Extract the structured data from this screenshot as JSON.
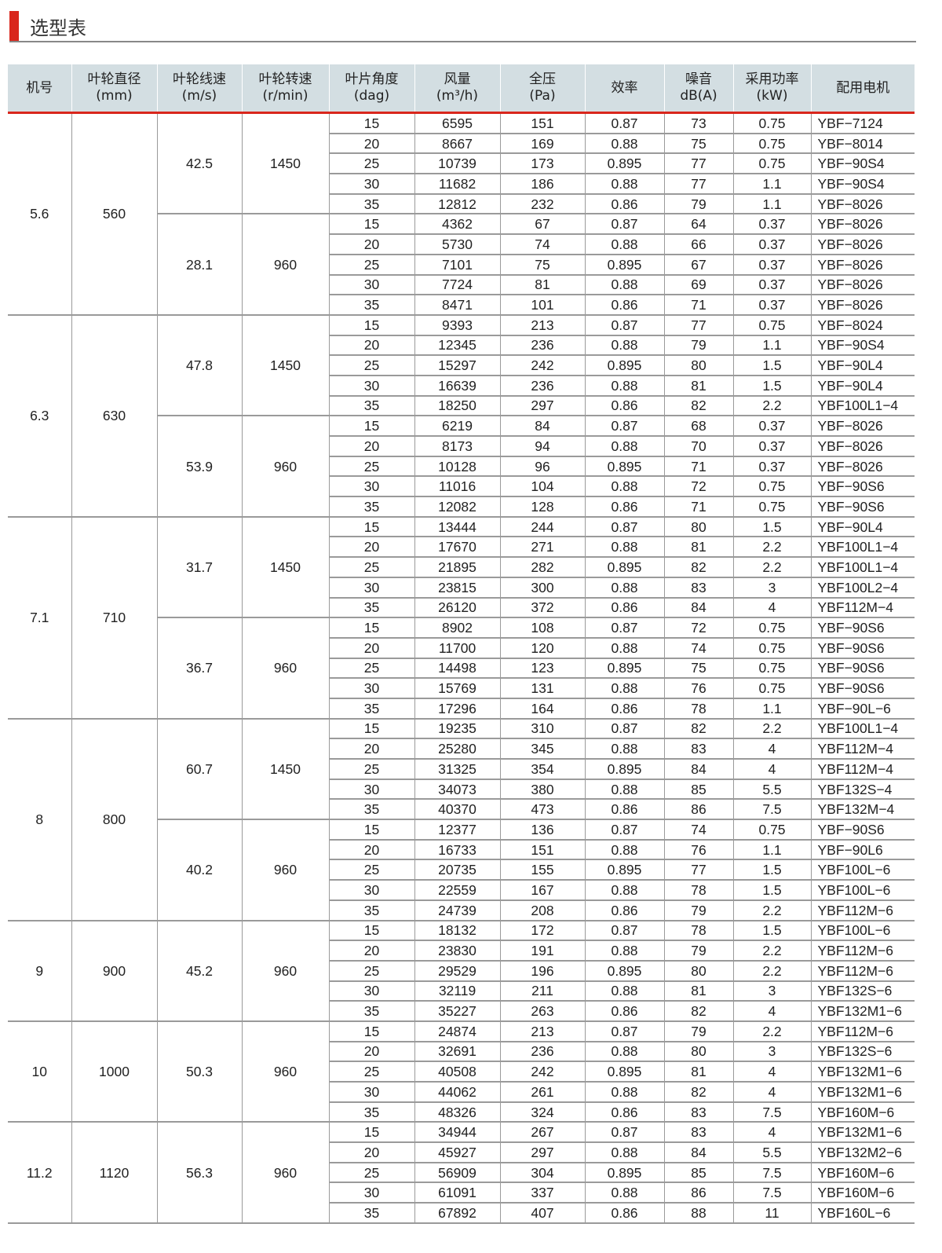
{
  "title": "选型表",
  "colors": {
    "accent": "#d9261c",
    "header_bg": "#d3dee2"
  },
  "headers": [
    {
      "name": "机号",
      "unit": ""
    },
    {
      "name": "叶轮直径",
      "unit": "(mm)"
    },
    {
      "name": "叶轮线速",
      "unit": "(m/s)"
    },
    {
      "name": "叶轮转速",
      "unit": "(r/min)"
    },
    {
      "name": "叶片角度",
      "unit": "(dag)"
    },
    {
      "name": "风量",
      "unit": "(m³/h)"
    },
    {
      "name": "全压",
      "unit": "(Pa)"
    },
    {
      "name": "效率",
      "unit": ""
    },
    {
      "name": "噪音",
      "unit": "dB(A)"
    },
    {
      "name": "采用功率",
      "unit": "(kW)"
    },
    {
      "name": "配用电机",
      "unit": ""
    }
  ],
  "groups": [
    {
      "no": "5.6",
      "diameter": "560",
      "subgroups": [
        {
          "speed": "42.5",
          "rpm": "1450",
          "rows": [
            [
              "15",
              "6595",
              "151",
              "0.87",
              "73",
              "0.75",
              "YBF−7124"
            ],
            [
              "20",
              "8667",
              "169",
              "0.88",
              "75",
              "0.75",
              "YBF−8014"
            ],
            [
              "25",
              "10739",
              "173",
              "0.895",
              "77",
              "0.75",
              "YBF−90S4"
            ],
            [
              "30",
              "11682",
              "186",
              "0.88",
              "77",
              "1.1",
              "YBF−90S4"
            ],
            [
              "35",
              "12812",
              "232",
              "0.86",
              "79",
              "1.1",
              "YBF−8026"
            ]
          ]
        },
        {
          "speed": "28.1",
          "rpm": "960",
          "rows": [
            [
              "15",
              "4362",
              "67",
              "0.87",
              "64",
              "0.37",
              "YBF−8026"
            ],
            [
              "20",
              "5730",
              "74",
              "0.88",
              "66",
              "0.37",
              "YBF−8026"
            ],
            [
              "25",
              "7101",
              "75",
              "0.895",
              "67",
              "0.37",
              "YBF−8026"
            ],
            [
              "30",
              "7724",
              "81",
              "0.88",
              "69",
              "0.37",
              "YBF−8026"
            ],
            [
              "35",
              "8471",
              "101",
              "0.86",
              "71",
              "0.37",
              "YBF−8026"
            ]
          ]
        }
      ]
    },
    {
      "no": "6.3",
      "diameter": "630",
      "subgroups": [
        {
          "speed": "47.8",
          "rpm": "1450",
          "rows": [
            [
              "15",
              "9393",
              "213",
              "0.87",
              "77",
              "0.75",
              "YBF−8024"
            ],
            [
              "20",
              "12345",
              "236",
              "0.88",
              "79",
              "1.1",
              "YBF−90S4"
            ],
            [
              "25",
              "15297",
              "242",
              "0.895",
              "80",
              "1.5",
              "YBF−90L4"
            ],
            [
              "30",
              "16639",
              "236",
              "0.88",
              "81",
              "1.5",
              "YBF−90L4"
            ],
            [
              "35",
              "18250",
              "297",
              "0.86",
              "82",
              "2.2",
              "YBF100L1−4"
            ]
          ]
        },
        {
          "speed": "53.9",
          "rpm": "960",
          "rows": [
            [
              "15",
              "6219",
              "84",
              "0.87",
              "68",
              "0.37",
              "YBF−8026"
            ],
            [
              "20",
              "8173",
              "94",
              "0.88",
              "70",
              "0.37",
              "YBF−8026"
            ],
            [
              "25",
              "10128",
              "96",
              "0.895",
              "71",
              "0.37",
              "YBF−8026"
            ],
            [
              "30",
              "11016",
              "104",
              "0.88",
              "72",
              "0.75",
              "YBF−90S6"
            ],
            [
              "35",
              "12082",
              "128",
              "0.86",
              "71",
              "0.75",
              "YBF−90S6"
            ]
          ]
        }
      ]
    },
    {
      "no": "7.1",
      "diameter": "710",
      "subgroups": [
        {
          "speed": "31.7",
          "rpm": "1450",
          "rows": [
            [
              "15",
              "13444",
              "244",
              "0.87",
              "80",
              "1.5",
              "YBF−90L4"
            ],
            [
              "20",
              "17670",
              "271",
              "0.88",
              "81",
              "2.2",
              "YBF100L1−4"
            ],
            [
              "25",
              "21895",
              "282",
              "0.895",
              "82",
              "2.2",
              "YBF100L1−4"
            ],
            [
              "30",
              "23815",
              "300",
              "0.88",
              "83",
              "3",
              "YBF100L2−4"
            ],
            [
              "35",
              "26120",
              "372",
              "0.86",
              "84",
              "4",
              "YBF112M−4"
            ]
          ]
        },
        {
          "speed": "36.7",
          "rpm": "960",
          "rows": [
            [
              "15",
              "8902",
              "108",
              "0.87",
              "72",
              "0.75",
              "YBF−90S6"
            ],
            [
              "20",
              "11700",
              "120",
              "0.88",
              "74",
              "0.75",
              "YBF−90S6"
            ],
            [
              "25",
              "14498",
              "123",
              "0.895",
              "75",
              "0.75",
              "YBF−90S6"
            ],
            [
              "30",
              "15769",
              "131",
              "0.88",
              "76",
              "0.75",
              "YBF−90S6"
            ],
            [
              "35",
              "17296",
              "164",
              "0.86",
              "78",
              "1.1",
              "YBF−90L−6"
            ]
          ]
        }
      ]
    },
    {
      "no": "8",
      "diameter": "800",
      "subgroups": [
        {
          "speed": "60.7",
          "rpm": "1450",
          "rows": [
            [
              "15",
              "19235",
              "310",
              "0.87",
              "82",
              "2.2",
              "YBF100L1−4"
            ],
            [
              "20",
              "25280",
              "345",
              "0.88",
              "83",
              "4",
              "YBF112M−4"
            ],
            [
              "25",
              "31325",
              "354",
              "0.895",
              "84",
              "4",
              "YBF112M−4"
            ],
            [
              "30",
              "34073",
              "380",
              "0.88",
              "85",
              "5.5",
              "YBF132S−4"
            ],
            [
              "35",
              "40370",
              "473",
              "0.86",
              "86",
              "7.5",
              "YBF132M−4"
            ]
          ]
        },
        {
          "speed": "40.2",
          "rpm": "960",
          "rows": [
            [
              "15",
              "12377",
              "136",
              "0.87",
              "74",
              "0.75",
              "YBF−90S6"
            ],
            [
              "20",
              "16733",
              "151",
              "0.88",
              "76",
              "1.1",
              "YBF−90L6"
            ],
            [
              "25",
              "20735",
              "155",
              "0.895",
              "77",
              "1.5",
              "YBF100L−6"
            ],
            [
              "30",
              "22559",
              "167",
              "0.88",
              "78",
              "1.5",
              "YBF100L−6"
            ],
            [
              "35",
              "24739",
              "208",
              "0.86",
              "79",
              "2.2",
              "YBF112M−6"
            ]
          ]
        }
      ]
    },
    {
      "no": "9",
      "diameter": "900",
      "subgroups": [
        {
          "speed": "45.2",
          "rpm": "960",
          "rows": [
            [
              "15",
              "18132",
              "172",
              "0.87",
              "78",
              "1.5",
              "YBF100L−6"
            ],
            [
              "20",
              "23830",
              "191",
              "0.88",
              "79",
              "2.2",
              "YBF112M−6"
            ],
            [
              "25",
              "29529",
              "196",
              "0.895",
              "80",
              "2.2",
              "YBF112M−6"
            ],
            [
              "30",
              "32119",
              "211",
              "0.88",
              "81",
              "3",
              "YBF132S−6"
            ],
            [
              "35",
              "35227",
              "263",
              "0.86",
              "82",
              "4",
              "YBF132M1−6"
            ]
          ]
        }
      ]
    },
    {
      "no": "10",
      "diameter": "1000",
      "subgroups": [
        {
          "speed": "50.3",
          "rpm": "960",
          "rows": [
            [
              "15",
              "24874",
              "213",
              "0.87",
              "79",
              "2.2",
              "YBF112M−6"
            ],
            [
              "20",
              "32691",
              "236",
              "0.88",
              "80",
              "3",
              "YBF132S−6"
            ],
            [
              "25",
              "40508",
              "242",
              "0.895",
              "81",
              "4",
              "YBF132M1−6"
            ],
            [
              "30",
              "44062",
              "261",
              "0.88",
              "82",
              "4",
              "YBF132M1−6"
            ],
            [
              "35",
              "48326",
              "324",
              "0.86",
              "83",
              "7.5",
              "YBF160M−6"
            ]
          ]
        }
      ]
    },
    {
      "no": "11.2",
      "diameter": "1120",
      "subgroups": [
        {
          "speed": "56.3",
          "rpm": "960",
          "rows": [
            [
              "15",
              "34944",
              "267",
              "0.87",
              "83",
              "4",
              "YBF132M1−6"
            ],
            [
              "20",
              "45927",
              "297",
              "0.88",
              "84",
              "5.5",
              "YBF132M2−6"
            ],
            [
              "25",
              "56909",
              "304",
              "0.895",
              "85",
              "7.5",
              "YBF160M−6"
            ],
            [
              "30",
              "61091",
              "337",
              "0.88",
              "86",
              "7.5",
              "YBF160M−6"
            ],
            [
              "35",
              "67892",
              "407",
              "0.86",
              "88",
              "11",
              "YBF160L−6"
            ]
          ]
        }
      ]
    }
  ]
}
